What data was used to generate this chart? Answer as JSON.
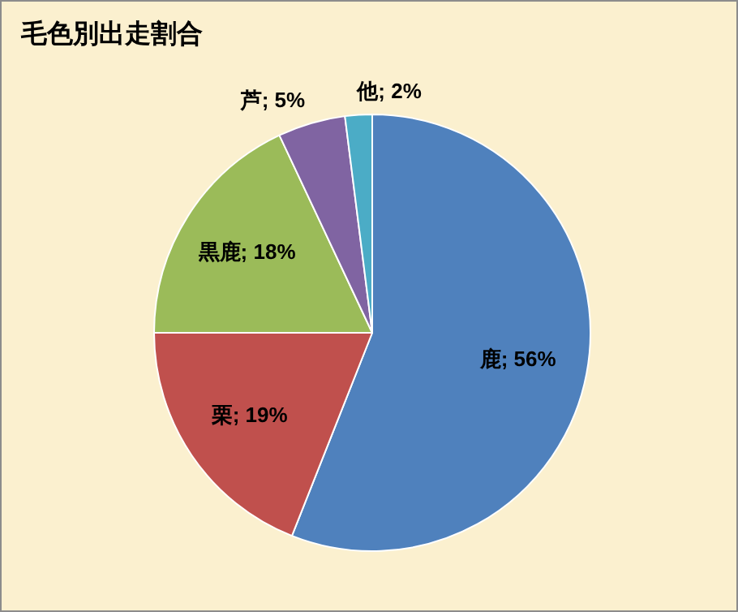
{
  "chart_data": {
    "type": "pie",
    "title": "毛色別出走割合",
    "categories": [
      "鹿",
      "栗",
      "黒鹿",
      "芦",
      "他"
    ],
    "values": [
      56,
      19,
      18,
      5,
      2
    ],
    "colors": [
      "#4f81bd",
      "#c0504d",
      "#9bbb59",
      "#8064a2",
      "#4bacc6"
    ],
    "value_labels": [
      "56%",
      "19%",
      "18%",
      "5%",
      "2%"
    ],
    "legend": false
  }
}
